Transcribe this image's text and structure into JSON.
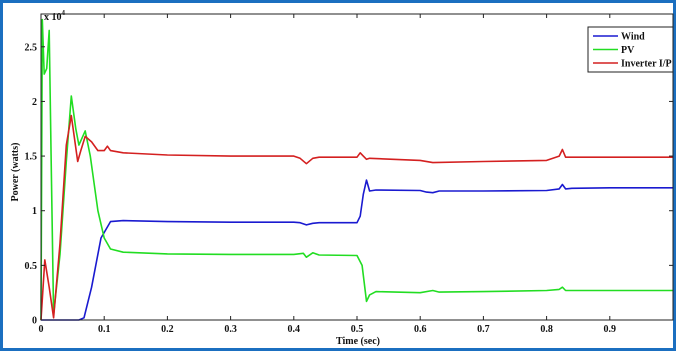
{
  "chart_data": {
    "type": "line",
    "xlabel": "Time (sec)",
    "ylabel": "Power (watts)",
    "y_multiplier_label": "x 10",
    "y_multiplier_exp": "4",
    "xlim": [
      0,
      1
    ],
    "ylim": [
      0,
      28000
    ],
    "x_ticks": [
      "0",
      "0.1",
      "0.2",
      "0.3",
      "0.4",
      "0.5",
      "0.6",
      "0.7",
      "0.8",
      "0.9"
    ],
    "y_ticks": [
      "0",
      "0.5",
      "1",
      "1.5",
      "2",
      "2.5"
    ],
    "grid": false,
    "legend_position": "top-right",
    "series": [
      {
        "name": "Wind",
        "color": "#1a1ad0",
        "points": [
          [
            0,
            0
          ],
          [
            0.06,
            0
          ],
          [
            0.068,
            200
          ],
          [
            0.08,
            3000
          ],
          [
            0.095,
            7500
          ],
          [
            0.11,
            9000
          ],
          [
            0.13,
            9100
          ],
          [
            0.2,
            9000
          ],
          [
            0.3,
            8950
          ],
          [
            0.4,
            8950
          ],
          [
            0.41,
            8900
          ],
          [
            0.42,
            8700
          ],
          [
            0.43,
            8850
          ],
          [
            0.44,
            8900
          ],
          [
            0.5,
            8900
          ],
          [
            0.505,
            9500
          ],
          [
            0.51,
            11500
          ],
          [
            0.515,
            12800
          ],
          [
            0.52,
            11800
          ],
          [
            0.53,
            11900
          ],
          [
            0.6,
            11850
          ],
          [
            0.61,
            11700
          ],
          [
            0.62,
            11650
          ],
          [
            0.63,
            11800
          ],
          [
            0.7,
            11800
          ],
          [
            0.8,
            11850
          ],
          [
            0.82,
            12000
          ],
          [
            0.825,
            12400
          ],
          [
            0.83,
            12000
          ],
          [
            0.84,
            12050
          ],
          [
            0.9,
            12100
          ],
          [
            1.0,
            12100
          ]
        ]
      },
      {
        "name": "PV",
        "color": "#22dd22",
        "points": [
          [
            0,
            0
          ],
          [
            0.002,
            27500
          ],
          [
            0.005,
            22500
          ],
          [
            0.009,
            23000
          ],
          [
            0.013,
            26500
          ],
          [
            0.016,
            15000
          ],
          [
            0.02,
            500
          ],
          [
            0.03,
            6000
          ],
          [
            0.04,
            14500
          ],
          [
            0.048,
            20500
          ],
          [
            0.055,
            17500
          ],
          [
            0.06,
            16000
          ],
          [
            0.07,
            17300
          ],
          [
            0.078,
            15000
          ],
          [
            0.09,
            10000
          ],
          [
            0.1,
            7500
          ],
          [
            0.11,
            6500
          ],
          [
            0.13,
            6200
          ],
          [
            0.2,
            6050
          ],
          [
            0.3,
            6000
          ],
          [
            0.4,
            6000
          ],
          [
            0.415,
            6100
          ],
          [
            0.42,
            5750
          ],
          [
            0.43,
            6150
          ],
          [
            0.44,
            5950
          ],
          [
            0.5,
            5900
          ],
          [
            0.508,
            5000
          ],
          [
            0.515,
            1700
          ],
          [
            0.52,
            2300
          ],
          [
            0.53,
            2600
          ],
          [
            0.6,
            2500
          ],
          [
            0.62,
            2700
          ],
          [
            0.63,
            2550
          ],
          [
            0.7,
            2600
          ],
          [
            0.8,
            2700
          ],
          [
            0.82,
            2800
          ],
          [
            0.825,
            3000
          ],
          [
            0.83,
            2700
          ],
          [
            0.9,
            2700
          ],
          [
            1.0,
            2700
          ]
        ]
      },
      {
        "name": "Inverter I/P",
        "color": "#d42020",
        "points": [
          [
            0,
            0
          ],
          [
            0.006,
            5500
          ],
          [
            0.013,
            3000
          ],
          [
            0.02,
            200
          ],
          [
            0.03,
            7000
          ],
          [
            0.04,
            16000
          ],
          [
            0.048,
            18700
          ],
          [
            0.058,
            14500
          ],
          [
            0.063,
            15500
          ],
          [
            0.07,
            16800
          ],
          [
            0.08,
            16300
          ],
          [
            0.09,
            15500
          ],
          [
            0.1,
            15500
          ],
          [
            0.105,
            15900
          ],
          [
            0.11,
            15500
          ],
          [
            0.13,
            15300
          ],
          [
            0.2,
            15100
          ],
          [
            0.3,
            15000
          ],
          [
            0.4,
            15000
          ],
          [
            0.41,
            14800
          ],
          [
            0.42,
            14300
          ],
          [
            0.43,
            14800
          ],
          [
            0.44,
            14900
          ],
          [
            0.5,
            14900
          ],
          [
            0.505,
            15300
          ],
          [
            0.51,
            15000
          ],
          [
            0.515,
            14700
          ],
          [
            0.52,
            14800
          ],
          [
            0.6,
            14600
          ],
          [
            0.62,
            14400
          ],
          [
            0.7,
            14500
          ],
          [
            0.8,
            14600
          ],
          [
            0.82,
            15000
          ],
          [
            0.825,
            15600
          ],
          [
            0.83,
            14900
          ],
          [
            0.9,
            14900
          ],
          [
            1.0,
            14900
          ]
        ]
      }
    ]
  }
}
